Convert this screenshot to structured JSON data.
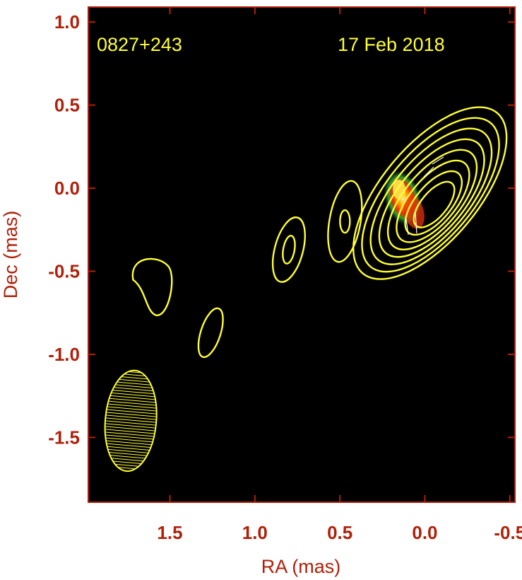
{
  "chart_data": {
    "type": "contour",
    "title": "",
    "source_label": "0827+243",
    "date_label": "17 Feb 2018",
    "xlabel": "RA (mas)",
    "ylabel": "Dec (mas)",
    "xlim": [
      1.98,
      -0.53
    ],
    "ylim": [
      -1.89,
      1.09
    ],
    "x_ticks": [
      1.5,
      1.0,
      0.5,
      0.0,
      -0.5
    ],
    "x_tick_labels": [
      "1.5",
      "1.0",
      "0.5",
      "0.0",
      "-0.5"
    ],
    "y_ticks": [
      1.0,
      0.5,
      0.0,
      -0.5,
      -1.0,
      -1.5
    ],
    "y_tick_labels": [
      "1.0",
      "0.5",
      "0.0",
      "-0.5",
      "-1.0",
      "-1.5"
    ],
    "background": "#000000",
    "contour_color": "#ffff33",
    "axis_color": "#b0200a",
    "core": {
      "ra": -0.05,
      "dec": 0.0
    },
    "beam": {
      "ra": 1.73,
      "dec": -1.4,
      "major": 0.31,
      "minor": 0.15,
      "pa_deg": 5
    },
    "contour_features": [
      {
        "name": "core-region",
        "ra": -0.03,
        "dec": -0.03,
        "levels": 8
      },
      {
        "name": "jet-knot-1",
        "ra": 0.47,
        "dec": -0.2,
        "levels": 2
      },
      {
        "name": "jet-knot-2",
        "ra": 0.8,
        "dec": -0.37,
        "levels": 2
      },
      {
        "name": "jet-knot-3",
        "ra": 1.26,
        "dec": -0.87,
        "levels": 1
      },
      {
        "name": "jet-knot-4",
        "ra": 1.6,
        "dec": -0.53,
        "levels": 1
      }
    ],
    "grid": false,
    "legend": "none"
  }
}
